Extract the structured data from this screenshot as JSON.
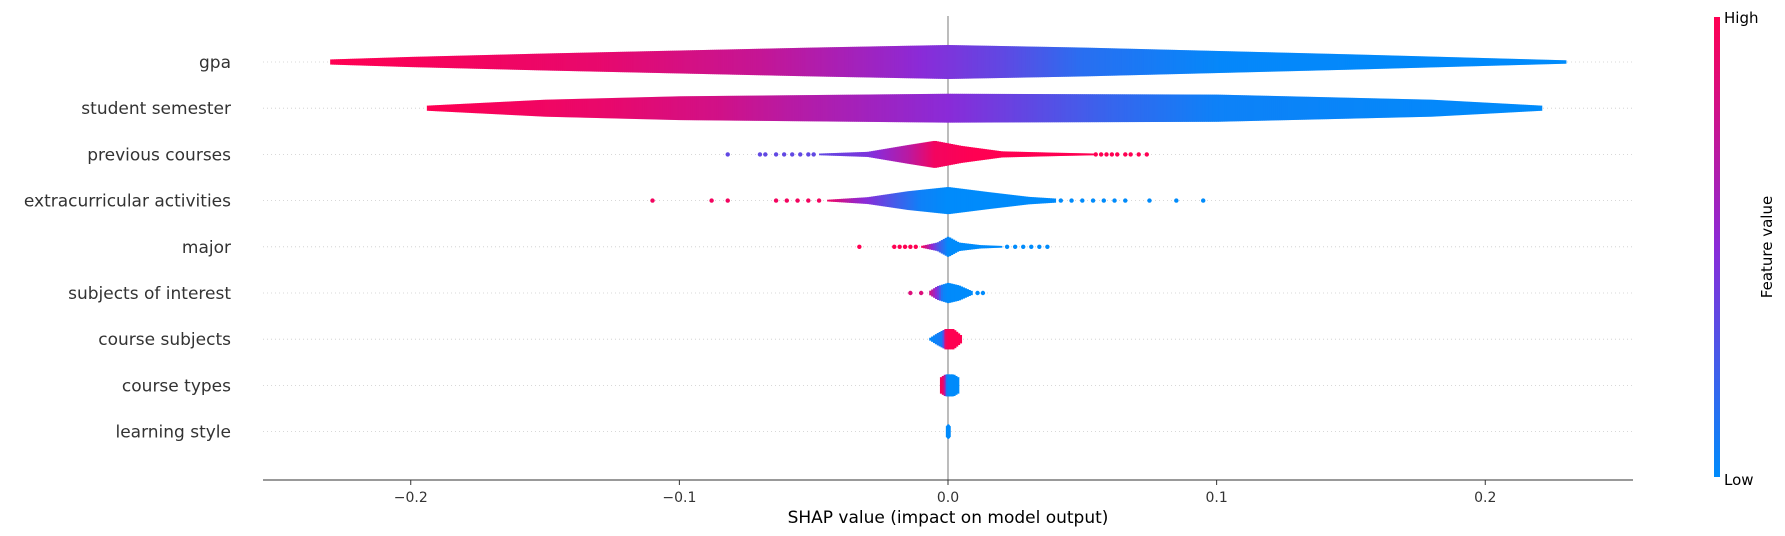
{
  "chart_data": {
    "type": "violin",
    "xlabel": "SHAP value (impact on model output)",
    "xlim": [
      -0.255,
      0.255
    ],
    "xticks": [
      {
        "value": -0.2,
        "label": "−0.2"
      },
      {
        "value": -0.1,
        "label": "−0.1"
      },
      {
        "value": 0.0,
        "label": "0.0"
      },
      {
        "value": 0.1,
        "label": "0.1"
      },
      {
        "value": 0.2,
        "label": "0.2"
      }
    ],
    "colorbar": {
      "label": "Feature value",
      "high_label": "High",
      "low_label": "Low",
      "high_color": "#ff0052",
      "mid_color": "#8a2bd8",
      "low_color": "#008bfb"
    },
    "features": [
      {
        "name": "gpa",
        "range": [
          -0.23,
          0.23
        ],
        "widths": [
          [
            -0.23,
            0.15
          ],
          [
            -0.2,
            0.3
          ],
          [
            -0.15,
            0.5
          ],
          [
            -0.05,
            0.85
          ],
          [
            0.0,
            1.0
          ],
          [
            0.05,
            0.85
          ],
          [
            0.15,
            0.45
          ],
          [
            0.23,
            0.1
          ]
        ],
        "colors": [
          [
            -0.23,
            1.0
          ],
          [
            -0.13,
            0.9
          ],
          [
            -0.07,
            0.75
          ],
          [
            -0.02,
            0.55
          ],
          [
            0.02,
            0.35
          ],
          [
            0.05,
            0.15
          ],
          [
            0.1,
            0.02
          ],
          [
            0.23,
            0.0
          ]
        ],
        "outliers_low": [],
        "outliers_high": []
      },
      {
        "name": "student semester",
        "range": [
          -0.194,
          0.221
        ],
        "widths": [
          [
            -0.194,
            0.15
          ],
          [
            -0.15,
            0.5
          ],
          [
            -0.1,
            0.7
          ],
          [
            0.0,
            0.85
          ],
          [
            0.1,
            0.8
          ],
          [
            0.18,
            0.5
          ],
          [
            0.221,
            0.15
          ]
        ],
        "colors": [
          [
            -0.194,
            1.0
          ],
          [
            -0.125,
            0.9
          ],
          [
            -0.085,
            0.8
          ],
          [
            -0.06,
            0.7
          ],
          [
            -0.03,
            0.6
          ],
          [
            0.0,
            0.5
          ],
          [
            0.03,
            0.35
          ],
          [
            0.06,
            0.2
          ],
          [
            0.1,
            0.05
          ],
          [
            0.22,
            0.0
          ]
        ],
        "outliers_low": [],
        "outliers_high": []
      },
      {
        "name": "previous courses",
        "range": [
          -0.048,
          0.055
        ],
        "widths": [
          [
            -0.048,
            0.05
          ],
          [
            -0.03,
            0.15
          ],
          [
            -0.015,
            0.55
          ],
          [
            -0.005,
            0.8
          ],
          [
            0.005,
            0.5
          ],
          [
            0.02,
            0.18
          ],
          [
            0.04,
            0.1
          ],
          [
            0.055,
            0.05
          ]
        ],
        "colors": [
          [
            -0.048,
            0.35
          ],
          [
            -0.03,
            0.45
          ],
          [
            -0.015,
            0.7
          ],
          [
            -0.005,
            0.95
          ],
          [
            0.01,
            1.0
          ],
          [
            0.055,
            1.0
          ]
        ],
        "outliers_low": [
          -0.082,
          -0.07,
          -0.068,
          -0.064,
          -0.061,
          -0.058,
          -0.055,
          -0.052,
          -0.05
        ],
        "outliers_high": [
          0.055,
          0.057,
          0.059,
          0.061,
          0.063,
          0.066,
          0.068,
          0.071,
          0.074
        ]
      },
      {
        "name": "extracurricular activities",
        "range": [
          -0.045,
          0.04
        ],
        "widths": [
          [
            -0.045,
            0.05
          ],
          [
            -0.03,
            0.2
          ],
          [
            -0.015,
            0.55
          ],
          [
            0.0,
            0.8
          ],
          [
            0.015,
            0.5
          ],
          [
            0.03,
            0.22
          ],
          [
            0.04,
            0.12
          ]
        ],
        "colors": [
          [
            -0.045,
            0.95
          ],
          [
            -0.035,
            0.6
          ],
          [
            -0.02,
            0.25
          ],
          [
            -0.01,
            0.05
          ],
          [
            0.0,
            0.0
          ],
          [
            0.04,
            0.0
          ]
        ],
        "outliers_low": [
          -0.11,
          -0.088,
          -0.082,
          -0.064,
          -0.06,
          -0.056,
          -0.052,
          -0.048
        ],
        "outliers_high": [
          0.042,
          0.046,
          0.05,
          0.054,
          0.058,
          0.062,
          0.066,
          0.075,
          0.085,
          0.095
        ]
      },
      {
        "name": "major",
        "range": [
          -0.01,
          0.02
        ],
        "widths": [
          [
            -0.01,
            0.05
          ],
          [
            -0.004,
            0.25
          ],
          [
            0.0,
            0.6
          ],
          [
            0.004,
            0.25
          ],
          [
            0.012,
            0.1
          ],
          [
            0.02,
            0.05
          ]
        ],
        "colors": [
          [
            -0.01,
            1.0
          ],
          [
            -0.004,
            0.3
          ],
          [
            0.0,
            0.0
          ],
          [
            0.02,
            0.0
          ]
        ],
        "outliers_low": [
          -0.033,
          -0.02,
          -0.018,
          -0.016,
          -0.014,
          -0.012
        ],
        "outliers_high": [
          0.022,
          0.025,
          0.028,
          0.031,
          0.034,
          0.037
        ]
      },
      {
        "name": "subjects of interest",
        "range": [
          -0.007,
          0.009
        ],
        "widths": [
          [
            -0.007,
            0.1
          ],
          [
            -0.004,
            0.4
          ],
          [
            0.0,
            0.6
          ],
          [
            0.004,
            0.45
          ],
          [
            0.009,
            0.1
          ]
        ],
        "colors": [
          [
            -0.007,
            0.85
          ],
          [
            -0.004,
            0.45
          ],
          [
            -0.002,
            0.05
          ],
          [
            0.0,
            0.0
          ],
          [
            0.009,
            0.0
          ]
        ],
        "outliers_low": [
          -0.014,
          -0.01
        ],
        "outliers_high": [
          0.011,
          0.013
        ]
      },
      {
        "name": "course subjects",
        "range": [
          -0.007,
          0.005
        ],
        "widths": [
          [
            -0.007,
            0.05
          ],
          [
            -0.004,
            0.35
          ],
          [
            -0.001,
            0.6
          ],
          [
            0.002,
            0.6
          ],
          [
            0.005,
            0.2
          ]
        ],
        "colors": [
          [
            -0.007,
            0.0
          ],
          [
            -0.002,
            0.1
          ],
          [
            -0.001,
            0.9
          ],
          [
            0.0,
            1.0
          ],
          [
            0.005,
            1.0
          ]
        ],
        "outliers_low": [],
        "outliers_high": []
      },
      {
        "name": "course types",
        "range": [
          -0.003,
          0.004
        ],
        "widths": [
          [
            -0.003,
            0.45
          ],
          [
            -0.001,
            0.65
          ],
          [
            0.002,
            0.65
          ],
          [
            0.004,
            0.45
          ]
        ],
        "colors": [
          [
            -0.003,
            1.0
          ],
          [
            -0.0015,
            0.9
          ],
          [
            -0.0005,
            0.05
          ],
          [
            0.0,
            0.0
          ],
          [
            0.004,
            0.0
          ]
        ],
        "outliers_low": [],
        "outliers_high": []
      },
      {
        "name": "learning style",
        "range": [
          -0.0008,
          0.0008
        ],
        "widths": [
          [
            -0.0008,
            0.3
          ],
          [
            0.0,
            0.45
          ],
          [
            0.0008,
            0.3
          ]
        ],
        "colors": [
          [
            -0.0008,
            0.0
          ],
          [
            0.0008,
            0.0
          ]
        ],
        "outliers_low": [],
        "outliers_high": []
      }
    ]
  }
}
